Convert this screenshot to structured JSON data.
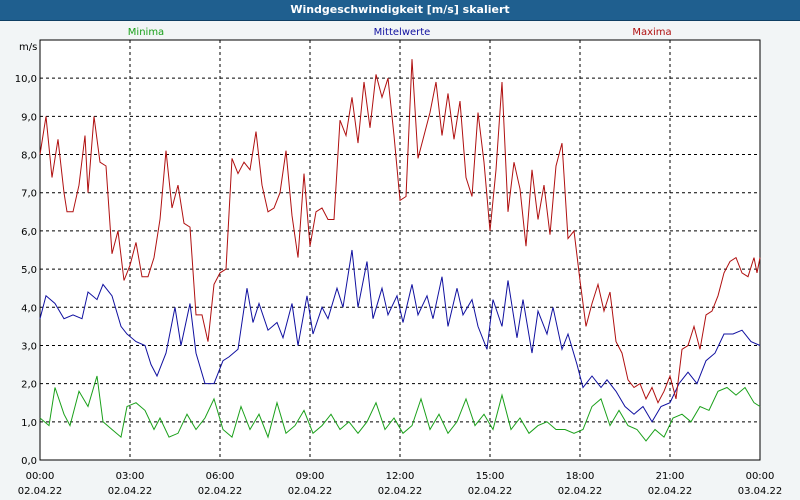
{
  "chart_data": {
    "type": "line",
    "title": "Windgeschwindigkeit [m/s] skaliert",
    "ylabel": "m/s",
    "ylim": [
      0,
      11
    ],
    "yticks": [
      "0,0",
      "1,0",
      "2,0",
      "3,0",
      "4,0",
      "5,0",
      "6,0",
      "7,0",
      "8,0",
      "9,0",
      "10,0"
    ],
    "xlim": [
      0,
      24
    ],
    "xticks": [
      {
        "time": "00:00",
        "date": "02.04.22"
      },
      {
        "time": "03:00",
        "date": "02.04.22"
      },
      {
        "time": "06:00",
        "date": "02.04.22"
      },
      {
        "time": "09:00",
        "date": "02.04.22"
      },
      {
        "time": "12:00",
        "date": "02.04.22"
      },
      {
        "time": "15:00",
        "date": "02.04.22"
      },
      {
        "time": "18:00",
        "date": "02.04.22"
      },
      {
        "time": "21:00",
        "date": "02.04.22"
      },
      {
        "time": "00:00",
        "date": "03.04.22"
      }
    ],
    "grid": true,
    "series": [
      {
        "name": "Minima",
        "color": "#1aa01a",
        "points": [
          [
            0,
            1.1
          ],
          [
            0.3,
            0.9
          ],
          [
            0.5,
            1.9
          ],
          [
            0.8,
            1.2
          ],
          [
            1,
            0.9
          ],
          [
            1.3,
            1.8
          ],
          [
            1.6,
            1.4
          ],
          [
            1.9,
            2.2
          ],
          [
            2.1,
            1.0
          ],
          [
            2.4,
            0.8
          ],
          [
            2.7,
            0.6
          ],
          [
            2.9,
            1.4
          ],
          [
            3.2,
            1.5
          ],
          [
            3.5,
            1.3
          ],
          [
            3.8,
            0.8
          ],
          [
            4.0,
            1.1
          ],
          [
            4.3,
            0.6
          ],
          [
            4.6,
            0.7
          ],
          [
            4.9,
            1.2
          ],
          [
            5.2,
            0.8
          ],
          [
            5.5,
            1.1
          ],
          [
            5.8,
            1.6
          ],
          [
            6.1,
            0.8
          ],
          [
            6.4,
            0.6
          ],
          [
            6.7,
            1.4
          ],
          [
            7.0,
            0.8
          ],
          [
            7.3,
            1.2
          ],
          [
            7.6,
            0.6
          ],
          [
            7.9,
            1.5
          ],
          [
            8.2,
            0.7
          ],
          [
            8.5,
            0.9
          ],
          [
            8.8,
            1.3
          ],
          [
            9.1,
            0.7
          ],
          [
            9.4,
            0.9
          ],
          [
            9.7,
            1.2
          ],
          [
            10.0,
            0.8
          ],
          [
            10.3,
            1.0
          ],
          [
            10.6,
            0.7
          ],
          [
            10.9,
            1.0
          ],
          [
            11.2,
            1.5
          ],
          [
            11.5,
            0.8
          ],
          [
            11.8,
            1.1
          ],
          [
            12.1,
            0.7
          ],
          [
            12.4,
            0.9
          ],
          [
            12.7,
            1.6
          ],
          [
            13.0,
            0.8
          ],
          [
            13.3,
            1.2
          ],
          [
            13.6,
            0.7
          ],
          [
            13.9,
            1.0
          ],
          [
            14.2,
            1.6
          ],
          [
            14.5,
            0.9
          ],
          [
            14.8,
            1.2
          ],
          [
            15.1,
            0.8
          ],
          [
            15.4,
            1.7
          ],
          [
            15.7,
            0.8
          ],
          [
            16.0,
            1.1
          ],
          [
            16.3,
            0.7
          ],
          [
            16.6,
            0.9
          ],
          [
            16.9,
            1.0
          ],
          [
            17.2,
            0.8
          ],
          [
            17.5,
            0.8
          ],
          [
            17.8,
            0.7
          ],
          [
            18.1,
            0.8
          ],
          [
            18.4,
            1.4
          ],
          [
            18.7,
            1.6
          ],
          [
            19.0,
            0.9
          ],
          [
            19.3,
            1.3
          ],
          [
            19.6,
            0.9
          ],
          [
            19.9,
            0.8
          ],
          [
            20.2,
            0.5
          ],
          [
            20.5,
            0.8
          ],
          [
            20.8,
            0.6
          ],
          [
            21.1,
            1.1
          ],
          [
            21.4,
            1.2
          ],
          [
            21.7,
            1.0
          ],
          [
            22.0,
            1.4
          ],
          [
            22.3,
            1.3
          ],
          [
            22.6,
            1.8
          ],
          [
            22.9,
            1.9
          ],
          [
            23.2,
            1.7
          ],
          [
            23.5,
            1.9
          ],
          [
            23.8,
            1.5
          ],
          [
            24,
            1.4
          ]
        ]
      },
      {
        "name": "Mittelwerte",
        "color": "#1010a0",
        "points": [
          [
            0,
            3.7
          ],
          [
            0.2,
            4.3
          ],
          [
            0.5,
            4.1
          ],
          [
            0.8,
            3.7
          ],
          [
            1.1,
            3.8
          ],
          [
            1.4,
            3.7
          ],
          [
            1.6,
            4.4
          ],
          [
            1.9,
            4.2
          ],
          [
            2.1,
            4.6
          ],
          [
            2.4,
            4.3
          ],
          [
            2.7,
            3.5
          ],
          [
            2.9,
            3.3
          ],
          [
            3.2,
            3.1
          ],
          [
            3.5,
            3.0
          ],
          [
            3.7,
            2.5
          ],
          [
            3.9,
            2.2
          ],
          [
            4.2,
            2.8
          ],
          [
            4.5,
            4.0
          ],
          [
            4.7,
            3.0
          ],
          [
            5.0,
            4.1
          ],
          [
            5.2,
            2.8
          ],
          [
            5.5,
            2.0
          ],
          [
            5.8,
            2.0
          ],
          [
            6.1,
            2.6
          ],
          [
            6.3,
            2.7
          ],
          [
            6.6,
            2.9
          ],
          [
            6.9,
            4.5
          ],
          [
            7.1,
            3.6
          ],
          [
            7.3,
            4.1
          ],
          [
            7.6,
            3.4
          ],
          [
            7.9,
            3.6
          ],
          [
            8.1,
            3.2
          ],
          [
            8.4,
            4.1
          ],
          [
            8.6,
            3.0
          ],
          [
            8.9,
            4.3
          ],
          [
            9.1,
            3.3
          ],
          [
            9.4,
            4.0
          ],
          [
            9.6,
            3.7
          ],
          [
            9.9,
            4.5
          ],
          [
            10.1,
            4.0
          ],
          [
            10.4,
            5.5
          ],
          [
            10.6,
            4.0
          ],
          [
            10.9,
            5.2
          ],
          [
            11.1,
            3.7
          ],
          [
            11.4,
            4.5
          ],
          [
            11.6,
            3.8
          ],
          [
            11.9,
            4.3
          ],
          [
            12.1,
            3.6
          ],
          [
            12.4,
            4.6
          ],
          [
            12.6,
            3.8
          ],
          [
            12.9,
            4.3
          ],
          [
            13.1,
            3.7
          ],
          [
            13.4,
            4.8
          ],
          [
            13.6,
            3.5
          ],
          [
            13.9,
            4.5
          ],
          [
            14.1,
            3.8
          ],
          [
            14.4,
            4.2
          ],
          [
            14.6,
            3.5
          ],
          [
            14.9,
            2.9
          ],
          [
            15.1,
            4.2
          ],
          [
            15.4,
            3.5
          ],
          [
            15.6,
            4.7
          ],
          [
            15.9,
            3.2
          ],
          [
            16.1,
            4.2
          ],
          [
            16.4,
            2.8
          ],
          [
            16.6,
            3.9
          ],
          [
            16.9,
            3.3
          ],
          [
            17.1,
            4.0
          ],
          [
            17.4,
            2.9
          ],
          [
            17.6,
            3.3
          ],
          [
            17.9,
            2.5
          ],
          [
            18.1,
            1.9
          ],
          [
            18.4,
            2.2
          ],
          [
            18.7,
            1.9
          ],
          [
            18.9,
            2.1
          ],
          [
            19.2,
            1.8
          ],
          [
            19.5,
            1.4
          ],
          [
            19.8,
            1.2
          ],
          [
            20.1,
            1.4
          ],
          [
            20.4,
            1.0
          ],
          [
            20.7,
            1.4
          ],
          [
            21.0,
            1.5
          ],
          [
            21.3,
            2.0
          ],
          [
            21.6,
            2.3
          ],
          [
            21.9,
            2.0
          ],
          [
            22.2,
            2.6
          ],
          [
            22.5,
            2.8
          ],
          [
            22.8,
            3.3
          ],
          [
            23.1,
            3.3
          ],
          [
            23.4,
            3.4
          ],
          [
            23.7,
            3.1
          ],
          [
            24,
            3.0
          ]
        ]
      },
      {
        "name": "Maxima",
        "color": "#b01010",
        "points": [
          [
            0,
            8.0
          ],
          [
            0.2,
            9.0
          ],
          [
            0.4,
            7.4
          ],
          [
            0.6,
            8.4
          ],
          [
            0.8,
            7.0
          ],
          [
            0.9,
            6.5
          ],
          [
            1.1,
            6.5
          ],
          [
            1.3,
            7.2
          ],
          [
            1.5,
            8.5
          ],
          [
            1.6,
            7.0
          ],
          [
            1.8,
            9.0
          ],
          [
            2.0,
            7.8
          ],
          [
            2.2,
            7.7
          ],
          [
            2.4,
            5.4
          ],
          [
            2.6,
            6.0
          ],
          [
            2.8,
            4.7
          ],
          [
            3.0,
            5.1
          ],
          [
            3.2,
            5.7
          ],
          [
            3.4,
            4.8
          ],
          [
            3.6,
            4.8
          ],
          [
            3.8,
            5.3
          ],
          [
            4.0,
            6.3
          ],
          [
            4.2,
            8.1
          ],
          [
            4.4,
            6.6
          ],
          [
            4.6,
            7.2
          ],
          [
            4.8,
            6.2
          ],
          [
            5.0,
            6.1
          ],
          [
            5.2,
            3.8
          ],
          [
            5.4,
            3.8
          ],
          [
            5.6,
            3.1
          ],
          [
            5.8,
            4.6
          ],
          [
            6.0,
            4.9
          ],
          [
            6.2,
            5.0
          ],
          [
            6.4,
            7.9
          ],
          [
            6.6,
            7.5
          ],
          [
            6.8,
            7.8
          ],
          [
            7.0,
            7.6
          ],
          [
            7.2,
            8.6
          ],
          [
            7.4,
            7.2
          ],
          [
            7.6,
            6.5
          ],
          [
            7.8,
            6.6
          ],
          [
            8.0,
            7.0
          ],
          [
            8.2,
            8.1
          ],
          [
            8.4,
            6.4
          ],
          [
            8.6,
            5.3
          ],
          [
            8.8,
            7.5
          ],
          [
            9.0,
            5.6
          ],
          [
            9.2,
            6.5
          ],
          [
            9.4,
            6.6
          ],
          [
            9.6,
            6.3
          ],
          [
            9.8,
            6.3
          ],
          [
            10.0,
            8.9
          ],
          [
            10.2,
            8.5
          ],
          [
            10.4,
            9.5
          ],
          [
            10.6,
            8.3
          ],
          [
            10.8,
            9.9
          ],
          [
            11.0,
            8.7
          ],
          [
            11.2,
            10.1
          ],
          [
            11.4,
            9.5
          ],
          [
            11.6,
            10.0
          ],
          [
            11.8,
            8.5
          ],
          [
            12.0,
            6.8
          ],
          [
            12.2,
            6.9
          ],
          [
            12.4,
            10.5
          ],
          [
            12.6,
            7.9
          ],
          [
            12.8,
            8.5
          ],
          [
            13.0,
            9.1
          ],
          [
            13.2,
            9.9
          ],
          [
            13.4,
            8.5
          ],
          [
            13.6,
            9.6
          ],
          [
            13.8,
            8.4
          ],
          [
            14.0,
            9.4
          ],
          [
            14.2,
            7.4
          ],
          [
            14.4,
            6.9
          ],
          [
            14.6,
            9.1
          ],
          [
            14.8,
            7.8
          ],
          [
            15.0,
            6.0
          ],
          [
            15.2,
            7.6
          ],
          [
            15.4,
            9.9
          ],
          [
            15.6,
            6.5
          ],
          [
            15.8,
            7.8
          ],
          [
            16.0,
            7.1
          ],
          [
            16.2,
            5.6
          ],
          [
            16.4,
            7.6
          ],
          [
            16.6,
            6.3
          ],
          [
            16.8,
            7.2
          ],
          [
            17.0,
            5.9
          ],
          [
            17.2,
            7.7
          ],
          [
            17.4,
            8.3
          ],
          [
            17.6,
            5.8
          ],
          [
            17.8,
            6.0
          ],
          [
            18.0,
            4.7
          ],
          [
            18.2,
            3.5
          ],
          [
            18.4,
            4.1
          ],
          [
            18.6,
            4.6
          ],
          [
            18.8,
            3.9
          ],
          [
            19.0,
            4.4
          ],
          [
            19.2,
            3.1
          ],
          [
            19.4,
            2.8
          ],
          [
            19.6,
            2.1
          ],
          [
            19.8,
            1.9
          ],
          [
            20.0,
            2.0
          ],
          [
            20.2,
            1.6
          ],
          [
            20.4,
            1.9
          ],
          [
            20.6,
            1.5
          ],
          [
            20.8,
            1.8
          ],
          [
            21.0,
            2.2
          ],
          [
            21.2,
            1.6
          ],
          [
            21.4,
            2.9
          ],
          [
            21.6,
            3.0
          ],
          [
            21.8,
            3.5
          ],
          [
            22.0,
            2.9
          ],
          [
            22.2,
            3.8
          ],
          [
            22.4,
            3.9
          ],
          [
            22.6,
            4.3
          ],
          [
            22.8,
            4.9
          ],
          [
            23.0,
            5.2
          ],
          [
            23.2,
            5.3
          ],
          [
            23.4,
            4.9
          ],
          [
            23.6,
            4.8
          ],
          [
            23.8,
            5.3
          ],
          [
            23.9,
            4.9
          ],
          [
            24,
            5.3
          ]
        ]
      }
    ]
  }
}
